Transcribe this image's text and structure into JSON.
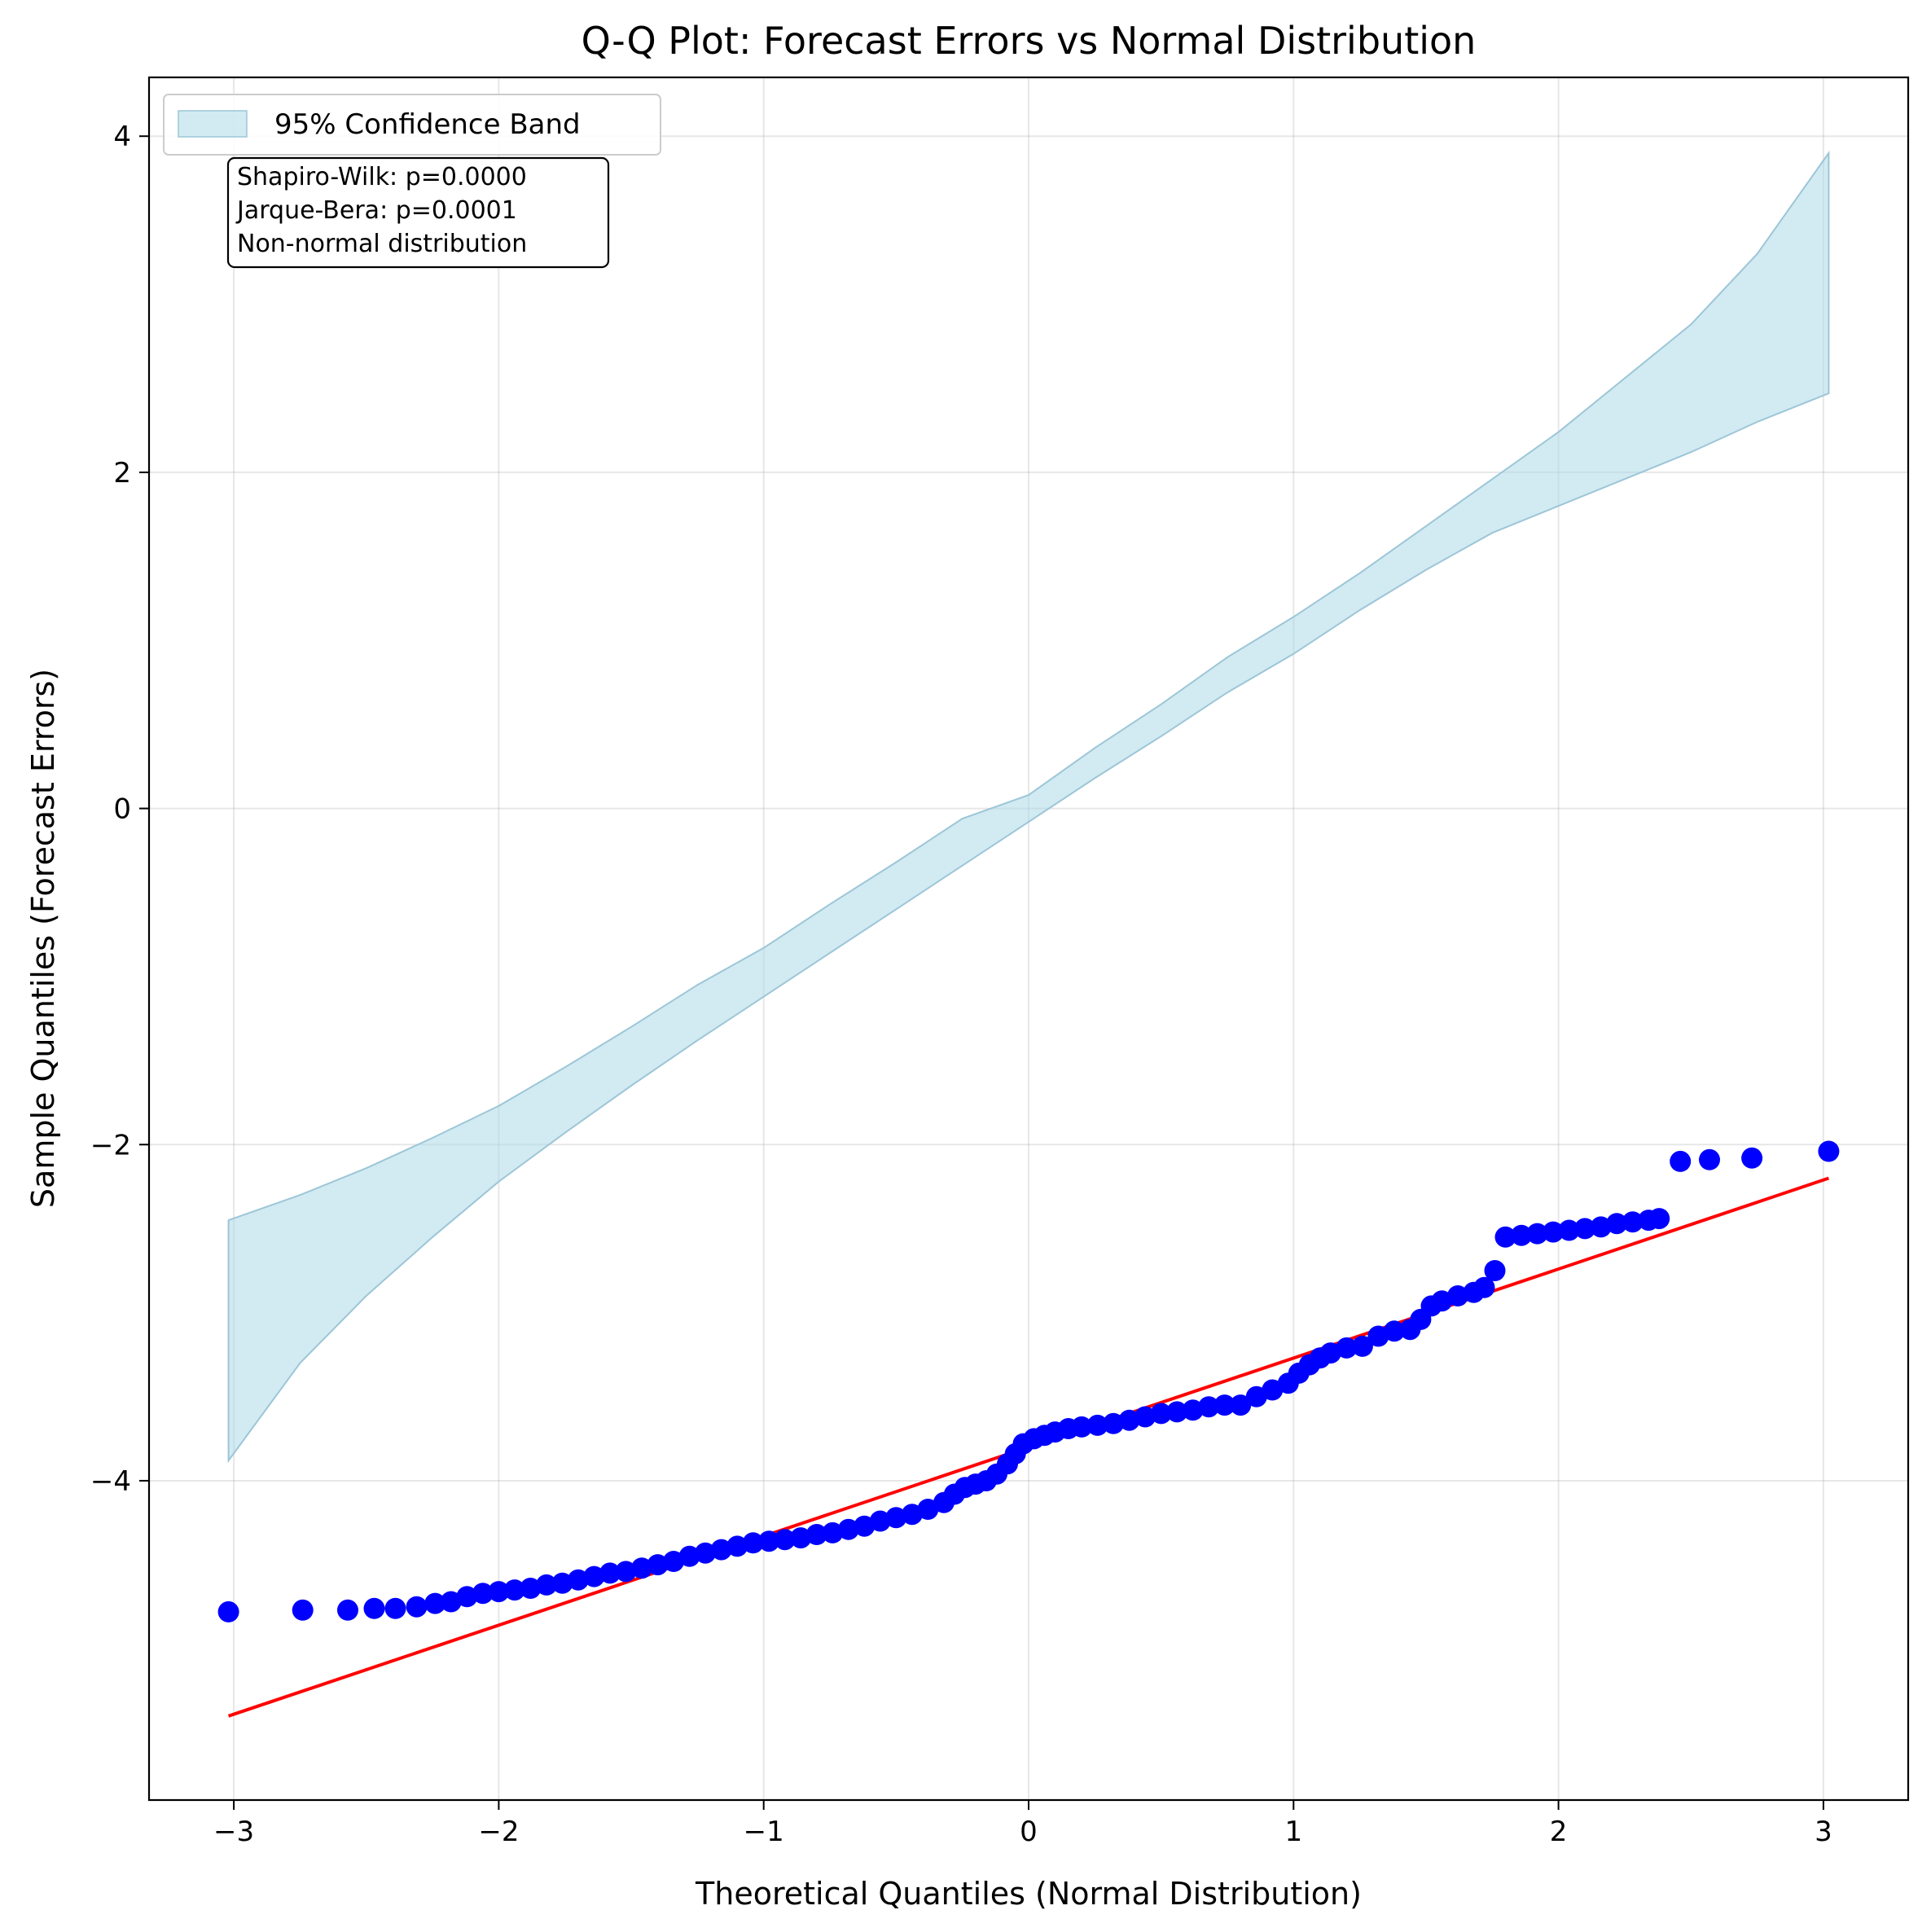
{
  "chart_data": {
    "type": "scatter",
    "title": "Q-Q Plot: Forecast Errors vs Normal Distribution",
    "xlabel": "Theoretical Quantiles (Normal Distribution)",
    "ylabel": "Sample Quantiles (Forecast Errors)",
    "xlim": [
      -3.32,
      3.32
    ],
    "ylim": [
      -5.9,
      4.35
    ],
    "xticks": [
      -3,
      -2,
      -1,
      0,
      1,
      2,
      3
    ],
    "yticks": [
      -4,
      -2,
      0,
      2,
      4
    ],
    "xtick_labels": [
      "−3",
      "−2",
      "−1",
      "0",
      "1",
      "2",
      "3"
    ],
    "ytick_labels": [
      "−4",
      "−2",
      "0",
      "2",
      "4"
    ],
    "grid": true,
    "legend": {
      "placement": "top-left",
      "entries": [
        {
          "label": "95% Confidence Band",
          "color": "#add8e6"
        }
      ]
    },
    "annotation": {
      "placement": "top-left",
      "lines": [
        "Shapiro-Wilk: p=0.0000",
        "Jarque-Bera: p=0.0001",
        "Non-normal distribution"
      ]
    },
    "reference_line": {
      "color": "#ff0000",
      "points": [
        [
          -3.02,
          -5.4
        ],
        [
          3.02,
          -2.2
        ]
      ]
    },
    "confidence_band": {
      "color": "#add8e6",
      "x": [
        -3.02,
        -2.75,
        -2.5,
        -2.25,
        -2.0,
        -1.75,
        -1.5,
        -1.25,
        -1.0,
        -0.75,
        -0.5,
        -0.25,
        0.0,
        0.25,
        0.5,
        0.75,
        1.0,
        1.25,
        1.5,
        1.75,
        2.0,
        2.25,
        2.5,
        2.75,
        3.02
      ],
      "lower": [
        -3.88,
        -3.3,
        -2.9,
        -2.55,
        -2.22,
        -1.93,
        -1.65,
        -1.38,
        -1.12,
        -0.86,
        -0.6,
        -0.34,
        -0.08,
        0.18,
        0.43,
        0.69,
        0.92,
        1.18,
        1.42,
        1.64,
        1.8,
        1.96,
        2.12,
        2.3,
        2.47
      ],
      "upper": [
        -2.45,
        -2.3,
        -2.14,
        -1.96,
        -1.77,
        -1.54,
        -1.3,
        -1.05,
        -0.83,
        -0.57,
        -0.32,
        -0.06,
        0.08,
        0.36,
        0.62,
        0.9,
        1.14,
        1.4,
        1.68,
        1.96,
        2.24,
        2.56,
        2.88,
        3.3,
        3.9
      ]
    },
    "series": [
      {
        "color": "#0000ff",
        "points": [
          [
            -3.02,
            -4.78
          ],
          [
            -2.74,
            -4.77
          ],
          [
            -2.57,
            -4.77
          ],
          [
            -2.47,
            -4.76
          ],
          [
            -2.39,
            -4.76
          ],
          [
            -2.31,
            -4.75
          ],
          [
            -2.24,
            -4.73
          ],
          [
            -2.18,
            -4.72
          ],
          [
            -2.12,
            -4.69
          ],
          [
            -2.06,
            -4.67
          ],
          [
            -2.0,
            -4.66
          ],
          [
            -1.94,
            -4.65
          ],
          [
            -1.88,
            -4.64
          ],
          [
            -1.82,
            -4.62
          ],
          [
            -1.76,
            -4.61
          ],
          [
            -1.7,
            -4.59
          ],
          [
            -1.64,
            -4.57
          ],
          [
            -1.58,
            -4.55
          ],
          [
            -1.52,
            -4.54
          ],
          [
            -1.46,
            -4.52
          ],
          [
            -1.4,
            -4.5
          ],
          [
            -1.34,
            -4.48
          ],
          [
            -1.28,
            -4.45
          ],
          [
            -1.22,
            -4.43
          ],
          [
            -1.16,
            -4.41
          ],
          [
            -1.1,
            -4.39
          ],
          [
            -1.04,
            -4.37
          ],
          [
            -0.98,
            -4.36
          ],
          [
            -0.92,
            -4.35
          ],
          [
            -0.86,
            -4.34
          ],
          [
            -0.8,
            -4.32
          ],
          [
            -0.74,
            -4.31
          ],
          [
            -0.68,
            -4.29
          ],
          [
            -0.62,
            -4.27
          ],
          [
            -0.56,
            -4.24
          ],
          [
            -0.5,
            -4.22
          ],
          [
            -0.44,
            -4.2
          ],
          [
            -0.38,
            -4.17
          ],
          [
            -0.32,
            -4.13
          ],
          [
            -0.28,
            -4.08
          ],
          [
            -0.24,
            -4.04
          ],
          [
            -0.2,
            -4.02
          ],
          [
            -0.16,
            -4.0
          ],
          [
            -0.12,
            -3.96
          ],
          [
            -0.08,
            -3.9
          ],
          [
            -0.05,
            -3.84
          ],
          [
            -0.02,
            -3.78
          ],
          [
            0.02,
            -3.75
          ],
          [
            0.06,
            -3.73
          ],
          [
            0.1,
            -3.71
          ],
          [
            0.15,
            -3.69
          ],
          [
            0.2,
            -3.68
          ],
          [
            0.26,
            -3.67
          ],
          [
            0.32,
            -3.66
          ],
          [
            0.38,
            -3.64
          ],
          [
            0.44,
            -3.62
          ],
          [
            0.5,
            -3.6
          ],
          [
            0.56,
            -3.59
          ],
          [
            0.62,
            -3.58
          ],
          [
            0.68,
            -3.56
          ],
          [
            0.74,
            -3.55
          ],
          [
            0.8,
            -3.55
          ],
          [
            0.86,
            -3.5
          ],
          [
            0.92,
            -3.46
          ],
          [
            0.98,
            -3.42
          ],
          [
            1.02,
            -3.36
          ],
          [
            1.06,
            -3.31
          ],
          [
            1.1,
            -3.27
          ],
          [
            1.14,
            -3.24
          ],
          [
            1.2,
            -3.21
          ],
          [
            1.26,
            -3.2
          ],
          [
            1.32,
            -3.14
          ],
          [
            1.38,
            -3.11
          ],
          [
            1.44,
            -3.1
          ],
          [
            1.48,
            -3.04
          ],
          [
            1.52,
            -2.96
          ],
          [
            1.56,
            -2.93
          ],
          [
            1.62,
            -2.9
          ],
          [
            1.68,
            -2.88
          ],
          [
            1.72,
            -2.85
          ],
          [
            1.76,
            -2.75
          ],
          [
            1.8,
            -2.55
          ],
          [
            1.86,
            -2.54
          ],
          [
            1.92,
            -2.53
          ],
          [
            1.98,
            -2.52
          ],
          [
            2.04,
            -2.51
          ],
          [
            2.1,
            -2.5
          ],
          [
            2.16,
            -2.49
          ],
          [
            2.22,
            -2.47
          ],
          [
            2.28,
            -2.46
          ],
          [
            2.34,
            -2.45
          ],
          [
            2.38,
            -2.44
          ],
          [
            2.46,
            -2.1
          ],
          [
            2.57,
            -2.09
          ],
          [
            2.73,
            -2.08
          ],
          [
            3.02,
            -2.04
          ]
        ]
      }
    ]
  }
}
